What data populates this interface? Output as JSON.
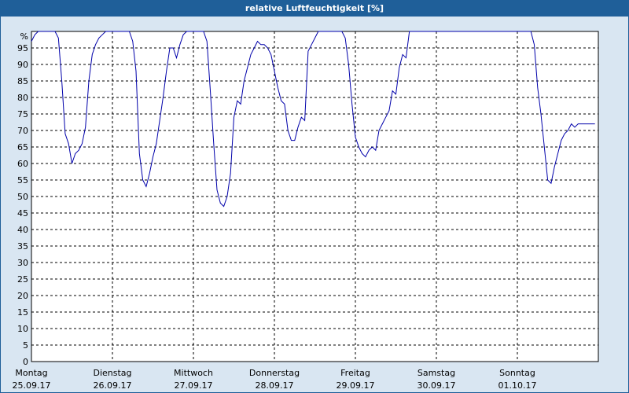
{
  "chart_data": {
    "type": "line",
    "title": "relative Luftfeuchtigkeit [%]",
    "y_unit_label": "%",
    "ylim": [
      0,
      100
    ],
    "yticks": [
      0,
      5,
      10,
      15,
      20,
      25,
      30,
      35,
      40,
      45,
      50,
      55,
      60,
      65,
      70,
      75,
      80,
      85,
      90,
      95
    ],
    "grid": true,
    "x_categories": [
      {
        "day": "Montag",
        "date": "25.09.17"
      },
      {
        "day": "Dienstag",
        "date": "26.09.17"
      },
      {
        "day": "Mittwoch",
        "date": "27.09.17"
      },
      {
        "day": "Donnerstag",
        "date": "28.09.17"
      },
      {
        "day": "Freitag",
        "date": "29.09.17"
      },
      {
        "day": "Samstag",
        "date": "30.09.17"
      },
      {
        "day": "Sonntag",
        "date": "01.10.17"
      }
    ],
    "series": [
      {
        "color": "#0000aa",
        "x_hours": [
          0,
          1,
          2,
          3,
          4,
          5,
          6,
          7,
          8,
          9,
          10,
          11,
          12,
          13,
          14,
          15,
          16,
          17,
          18,
          19,
          20,
          21,
          22,
          23,
          24,
          25,
          26,
          27,
          28,
          29,
          30,
          31,
          32,
          33,
          34,
          35,
          36,
          37,
          38,
          39,
          40,
          41,
          42,
          43,
          44,
          45,
          46,
          47,
          48,
          49,
          50,
          51,
          52,
          53,
          54,
          55,
          56,
          57,
          58,
          59,
          60,
          61,
          62,
          63,
          64,
          65,
          66,
          67,
          68,
          69,
          70,
          71,
          72,
          73,
          74,
          75,
          76,
          77,
          78,
          79,
          80,
          81,
          82,
          83,
          84,
          85,
          86,
          87,
          88,
          89,
          90,
          91,
          92,
          93,
          94,
          95,
          96,
          97,
          98,
          99,
          100,
          101,
          102,
          103,
          104,
          105,
          106,
          107,
          108,
          109,
          110,
          111,
          112,
          113,
          114,
          115,
          116,
          117,
          118,
          119,
          120,
          121,
          122,
          123,
          124,
          125,
          126,
          127,
          128,
          129,
          130,
          131,
          132,
          133,
          134,
          135,
          136,
          137,
          138,
          139,
          140,
          141,
          142,
          143,
          144,
          145,
          146,
          147,
          148,
          149,
          150,
          151,
          152,
          153,
          154,
          155,
          156,
          157,
          158,
          159,
          160,
          161,
          162,
          163,
          164,
          165,
          166,
          167
        ],
        "values": [
          97,
          99,
          100,
          100,
          100,
          100,
          100,
          100,
          98,
          85,
          69,
          66,
          60,
          63,
          64,
          66,
          71,
          85,
          93,
          96,
          98,
          99,
          100,
          100,
          100,
          100,
          100,
          100,
          100,
          100,
          97,
          88,
          63,
          55,
          53,
          57,
          62,
          66,
          73,
          80,
          88,
          95,
          95,
          92,
          96,
          99,
          100,
          100,
          100,
          100,
          100,
          100,
          97,
          82,
          66,
          52,
          48,
          47,
          50,
          57,
          74,
          79,
          78,
          85,
          89,
          93,
          95,
          97,
          96,
          96,
          95,
          93,
          88,
          83,
          79,
          78,
          70,
          67,
          67,
          71,
          74,
          73,
          94,
          96,
          98,
          100,
          100,
          100,
          100,
          100,
          100,
          100,
          100,
          98,
          90,
          78,
          68,
          65,
          63,
          62,
          64,
          65,
          64,
          70,
          72,
          74,
          76,
          82,
          81,
          89,
          93,
          92,
          100,
          100,
          100,
          100,
          100,
          100,
          100,
          100,
          100,
          100,
          100,
          100,
          100,
          100,
          100,
          100,
          100,
          100,
          100,
          100,
          100,
          100,
          100,
          100,
          100,
          100,
          100,
          100,
          100,
          100,
          100,
          100,
          100,
          100,
          100,
          100,
          100,
          96,
          83,
          75,
          65,
          55,
          54,
          59,
          63,
          67,
          69,
          70,
          72,
          71,
          72,
          72,
          72,
          72,
          72,
          72
        ]
      }
    ]
  }
}
